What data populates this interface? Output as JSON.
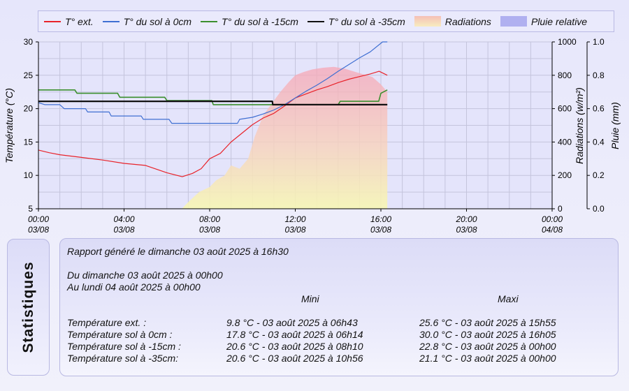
{
  "legend": [
    {
      "label": "T° ext.",
      "color": "#e8232a",
      "kind": "line"
    },
    {
      "label": "T° du sol à 0cm",
      "color": "#3f6fd2",
      "kind": "line"
    },
    {
      "label": "T° du sol à -15cm",
      "color": "#3b8f2e",
      "kind": "line"
    },
    {
      "label": "T° du sol à -35cm",
      "color": "#111111",
      "kind": "line"
    },
    {
      "label": "Radiations",
      "color": "#f5c9b8",
      "kind": "area"
    },
    {
      "label": "Pluie relative",
      "color": "#b0b0f0",
      "kind": "area"
    }
  ],
  "chart_data": {
    "type": "line",
    "xlabels": [
      [
        "00:00",
        "03/08"
      ],
      [
        "04:00",
        "03/08"
      ],
      [
        "08:00",
        "03/08"
      ],
      [
        "12:00",
        "03/08"
      ],
      [
        "16:00",
        "03/08"
      ],
      [
        "20:00",
        "03/08"
      ],
      [
        "00:00",
        "04/08"
      ]
    ],
    "xlim": [
      0,
      24
    ],
    "ylabel": "Température (°C)",
    "ylim": [
      5,
      30
    ],
    "yticks": [
      5,
      10,
      15,
      20,
      25,
      30
    ],
    "y2label": "Radiations (w/m²)",
    "y2lim": [
      0,
      1000
    ],
    "y2ticks": [
      0,
      200,
      400,
      600,
      800,
      1000
    ],
    "y3label": "Pluie (mm)",
    "y3lim": [
      0,
      1
    ],
    "y3ticks": [
      "0.0",
      "0.2",
      "0.4",
      "0.6",
      "0.8",
      "1.0"
    ],
    "grid": true,
    "series": [
      {
        "name": "T° ext.",
        "color": "#e8232a",
        "x": [
          0,
          0.5,
          1,
          2,
          3,
          4,
          5,
          6,
          6.72,
          7.2,
          7.6,
          8,
          8.5,
          9,
          9.5,
          10,
          10.5,
          11,
          11.5,
          12,
          12.5,
          13,
          13.5,
          14,
          14.5,
          15,
          15.5,
          15.92,
          16.3
        ],
        "y": [
          13.8,
          13.4,
          13.1,
          12.7,
          12.3,
          11.8,
          11.5,
          10.4,
          9.8,
          10.3,
          11.0,
          12.5,
          13.3,
          15.0,
          16.3,
          17.6,
          18.6,
          19.3,
          20.4,
          21.6,
          22.2,
          22.8,
          23.3,
          23.9,
          24.4,
          24.8,
          25.2,
          25.6,
          25.0
        ]
      },
      {
        "name": "T° du sol à 0cm",
        "color": "#3f6fd2",
        "x": [
          0,
          0.3,
          1.0,
          1.2,
          2.2,
          2.3,
          3.3,
          3.4,
          4.8,
          4.9,
          6.1,
          6.23,
          9.3,
          9.4,
          10.0,
          10.5,
          11.0,
          11.5,
          12.0,
          12.5,
          13.0,
          13.5,
          14.0,
          14.5,
          15.0,
          15.5,
          16.08,
          16.3
        ],
        "y": [
          20.9,
          20.6,
          20.6,
          20.0,
          20.0,
          19.5,
          19.5,
          18.9,
          18.9,
          18.4,
          18.4,
          17.8,
          17.8,
          18.4,
          18.7,
          19.2,
          19.8,
          20.6,
          21.6,
          22.6,
          23.5,
          24.5,
          25.6,
          26.6,
          27.6,
          28.5,
          30.0,
          30.0
        ]
      },
      {
        "name": "T° du sol à -15cm",
        "color": "#3b8f2e",
        "x": [
          0,
          1.7,
          1.8,
          3.7,
          3.8,
          5.9,
          6.0,
          8.1,
          8.17,
          10.9,
          11.0,
          14.0,
          14.1,
          15.9,
          16.0,
          16.3
        ],
        "y": [
          22.8,
          22.8,
          22.3,
          22.3,
          21.7,
          21.7,
          21.2,
          21.2,
          20.6,
          20.6,
          20.6,
          20.6,
          21.1,
          21.1,
          22.3,
          22.8
        ]
      },
      {
        "name": "T° du sol à -35cm",
        "color": "#111111",
        "x": [
          0,
          10.93,
          10.95,
          16.3
        ],
        "y": [
          21.1,
          21.1,
          20.6,
          20.6
        ]
      }
    ],
    "radiation": {
      "name": "Radiations",
      "x": [
        6.7,
        7.0,
        7.5,
        8.0,
        8.3,
        8.7,
        9.0,
        9.4,
        9.8,
        10.1,
        10.5,
        10.9,
        11.3,
        11.7,
        12.0,
        12.4,
        12.8,
        13.3,
        13.8,
        14.3,
        14.8,
        15.2,
        15.6,
        16.0,
        16.3
      ],
      "y": [
        0,
        40,
        100,
        130,
        170,
        200,
        260,
        240,
        300,
        430,
        560,
        630,
        700,
        760,
        800,
        820,
        835,
        845,
        850,
        840,
        820,
        805,
        790,
        745,
        700
      ]
    },
    "rain": {
      "name": "Pluie relative",
      "values": []
    }
  },
  "stats": {
    "tab_label": "Statistiques",
    "report_line": "Rapport généré le dimanche 03 août 2025 à 16h30",
    "from_line": "Du dimanche 03 août 2025 à 00h00",
    "to_line": "Au lundi 04 août 2025 à 00h00",
    "header_min": "Mini",
    "header_max": "Maxi",
    "rows": [
      {
        "label": "Température ext. :",
        "min": "9.8 °C - 03 août 2025 à 06h43",
        "max": "25.6 °C - 03 août 2025 à 15h55"
      },
      {
        "label": "Température sol à 0cm :",
        "min": "17.8 °C - 03 août 2025 à 06h14",
        "max": "30.0 °C - 03 août 2025 à 16h05"
      },
      {
        "label": "Température sol à -15cm :",
        "min": "20.6 °C - 03 août 2025 à 08h10",
        "max": "22.8 °C - 03 août 2025 à 00h00"
      },
      {
        "label": "Température sol à -35cm:",
        "min": "20.6 °C - 03 août 2025 à 10h56",
        "max": "21.1 °C - 03 août 2025 à 00h00"
      }
    ]
  }
}
